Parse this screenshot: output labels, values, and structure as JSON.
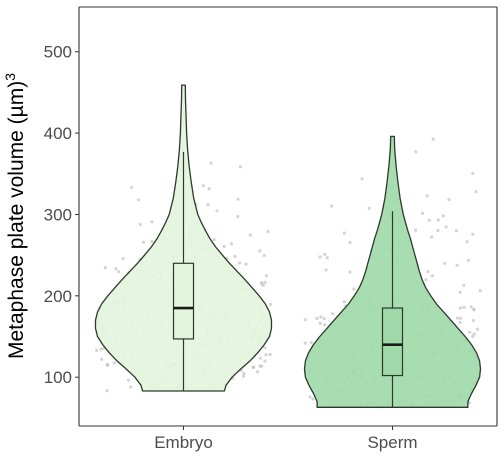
{
  "chart_data": {
    "type": "violin",
    "title": "",
    "xlabel": "",
    "ylabel": "Metaphase plate volume (µm)",
    "ylabel_superscript": "3",
    "ylim": [
      40,
      555
    ],
    "yticks": [
      100,
      200,
      300,
      400,
      500
    ],
    "grid": false,
    "categories": [
      "Embryo",
      "Sperm"
    ],
    "colors": {
      "Embryo": "#e3f4dc",
      "Sperm": "#9fd9aa",
      "outline": "#2b3a2b",
      "points": "#bdbdbd",
      "axis": "#333333"
    },
    "groups": [
      {
        "name": "Embryo",
        "min": 83,
        "q1": 147,
        "median": 185,
        "q3": 240,
        "max": 459,
        "whisker_low": 83,
        "whisker_high": 377,
        "density": [
          [
            83,
            0.8
          ],
          [
            90,
            0.83
          ],
          [
            100,
            0.95
          ],
          [
            110,
            1.12
          ],
          [
            120,
            1.3
          ],
          [
            130,
            1.45
          ],
          [
            140,
            1.58
          ],
          [
            150,
            1.68
          ],
          [
            160,
            1.72
          ],
          [
            170,
            1.72
          ],
          [
            180,
            1.68
          ],
          [
            190,
            1.6
          ],
          [
            200,
            1.48
          ],
          [
            210,
            1.34
          ],
          [
            220,
            1.2
          ],
          [
            230,
            1.05
          ],
          [
            240,
            0.9
          ],
          [
            250,
            0.76
          ],
          [
            260,
            0.63
          ],
          [
            270,
            0.52
          ],
          [
            280,
            0.43
          ],
          [
            290,
            0.35
          ],
          [
            300,
            0.28
          ],
          [
            320,
            0.2
          ],
          [
            340,
            0.15
          ],
          [
            360,
            0.11
          ],
          [
            380,
            0.08
          ],
          [
            400,
            0.06
          ],
          [
            420,
            0.05
          ],
          [
            440,
            0.04
          ],
          [
            459,
            0.035
          ]
        ]
      },
      {
        "name": "Sperm",
        "min": 63,
        "q1": 102,
        "median": 140,
        "q3": 185,
        "max": 396,
        "whisker_low": 63,
        "whisker_high": 304,
        "density": [
          [
            63,
            1.68
          ],
          [
            70,
            1.68
          ],
          [
            80,
            1.76
          ],
          [
            90,
            1.86
          ],
          [
            100,
            1.94
          ],
          [
            110,
            1.96
          ],
          [
            120,
            1.94
          ],
          [
            130,
            1.87
          ],
          [
            140,
            1.76
          ],
          [
            150,
            1.62
          ],
          [
            160,
            1.46
          ],
          [
            170,
            1.3
          ],
          [
            180,
            1.14
          ],
          [
            190,
            0.98
          ],
          [
            200,
            0.85
          ],
          [
            210,
            0.74
          ],
          [
            220,
            0.66
          ],
          [
            230,
            0.6
          ],
          [
            240,
            0.55
          ],
          [
            250,
            0.5
          ],
          [
            260,
            0.45
          ],
          [
            270,
            0.4
          ],
          [
            280,
            0.34
          ],
          [
            290,
            0.29
          ],
          [
            300,
            0.24
          ],
          [
            320,
            0.17
          ],
          [
            340,
            0.12
          ],
          [
            360,
            0.08
          ],
          [
            380,
            0.05
          ],
          [
            396,
            0.04
          ]
        ]
      }
    ]
  }
}
